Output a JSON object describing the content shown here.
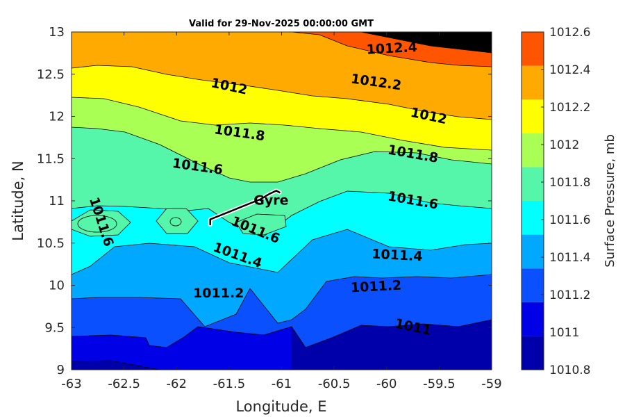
{
  "chart_data": {
    "type": "contour",
    "title": "Valid for 29-Nov-2025 00:00:00 GMT",
    "xlabel": "Longitude, E",
    "ylabel": "Latitude, N",
    "xlim": [
      -63,
      -59
    ],
    "ylim": [
      9,
      13
    ],
    "xticks": [
      "-63",
      "-62.5",
      "-62",
      "-61.5",
      "-61",
      "-60.5",
      "-60",
      "-59.5",
      "-59"
    ],
    "yticks": [
      "9",
      "9.5",
      "10",
      "10.5",
      "11",
      "11.5",
      "12",
      "12.5",
      "13"
    ],
    "colorbar": {
      "label": "Surface Pressure, mb",
      "levels": [
        1010.8,
        1011,
        1011.2,
        1011.4,
        1011.6,
        1011.8,
        1012,
        1012.2,
        1012.4,
        1012.6
      ],
      "tick_labels": [
        "1010.8",
        "1011",
        "1011.2",
        "1011.4",
        "1011.6",
        "1011.8",
        "1012",
        "1012.2",
        "1012.4",
        "1012.6"
      ],
      "colors": [
        "#0000aa",
        "#0000e6",
        "#0a50ff",
        "#00a8ff",
        "#00ffff",
        "#55f5aa",
        "#aaff55",
        "#ffff00",
        "#ffaa00",
        "#ff5500"
      ]
    },
    "contour_labels": [
      {
        "text": "1012.4",
        "lon": -59.95,
        "lat": 12.8,
        "angle": -3
      },
      {
        "text": "1012.2",
        "lon": -60.1,
        "lat": 12.4,
        "angle": 8
      },
      {
        "text": "1012",
        "lon": -61.5,
        "lat": 12.35,
        "angle": 12
      },
      {
        "text": "1012",
        "lon": -59.6,
        "lat": 12.0,
        "angle": 12
      },
      {
        "text": "1011.8",
        "lon": -61.4,
        "lat": 11.8,
        "angle": 8
      },
      {
        "text": "1011.8",
        "lon": -59.75,
        "lat": 11.55,
        "angle": 10
      },
      {
        "text": "1011.6",
        "lon": -61.8,
        "lat": 11.4,
        "angle": 8
      },
      {
        "text": "1011.6",
        "lon": -59.75,
        "lat": 11.0,
        "angle": 10
      },
      {
        "text": "1011.6",
        "lon": -62.72,
        "lat": 10.75,
        "angle": 72
      },
      {
        "text": "1011.6",
        "lon": -61.25,
        "lat": 10.65,
        "angle": 22
      },
      {
        "text": "1011.4",
        "lon": -61.42,
        "lat": 10.35,
        "angle": 20
      },
      {
        "text": "1011.4",
        "lon": -59.9,
        "lat": 10.35,
        "angle": 3
      },
      {
        "text": "1011.2",
        "lon": -61.6,
        "lat": 9.9,
        "angle": 0
      },
      {
        "text": "1011.2",
        "lon": -60.1,
        "lat": 9.98,
        "angle": -3
      },
      {
        "text": "1011",
        "lon": -59.75,
        "lat": 9.5,
        "angle": 12
      }
    ],
    "annotations": [
      {
        "text": "Gyre",
        "lon": -61.1,
        "lat": 11.0
      }
    ],
    "track": [
      [
        -61.68,
        10.72
      ],
      [
        -61.68,
        10.78
      ],
      [
        -61.6,
        10.82
      ],
      [
        -61.5,
        10.87
      ],
      [
        -61.4,
        10.92
      ],
      [
        -61.3,
        10.97
      ],
      [
        -61.2,
        11.02
      ],
      [
        -61.12,
        11.08
      ],
      [
        -61.05,
        11.12
      ],
      [
        -61.02,
        11.1
      ]
    ]
  }
}
